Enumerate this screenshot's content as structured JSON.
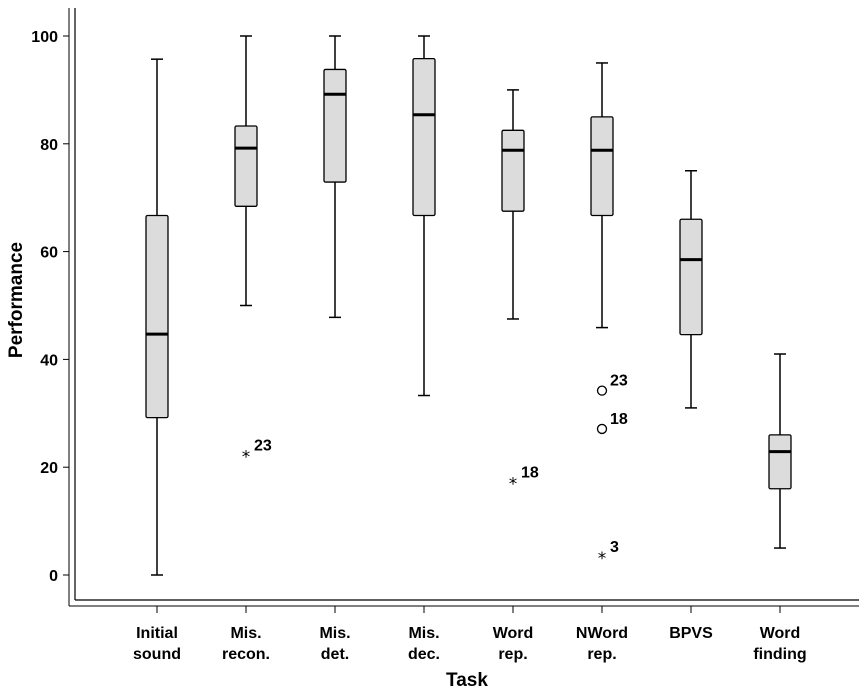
{
  "chart_data": {
    "type": "boxplot",
    "xlabel": "Task",
    "ylabel": "Performance",
    "ylim": [
      -5,
      105
    ],
    "yticks": [
      0,
      20,
      40,
      60,
      80,
      100
    ],
    "grid": false,
    "categories": [
      [
        "Initial",
        "sound"
      ],
      [
        "Mis.",
        "recon."
      ],
      [
        "Mis.",
        "det."
      ],
      [
        "Mis.",
        "dec."
      ],
      [
        "Word",
        "rep."
      ],
      [
        "NWord",
        "rep."
      ],
      [
        "BPVS"
      ],
      [
        "Word",
        "finding"
      ]
    ],
    "boxes": [
      {
        "whisker_low": 0,
        "q1": 29.2,
        "median": 44.7,
        "q3": 66.7,
        "whisker_high": 95.7
      },
      {
        "whisker_low": 50,
        "q1": 68.4,
        "median": 79.2,
        "q3": 83.3,
        "whisker_high": 100
      },
      {
        "whisker_low": 47.8,
        "q1": 72.9,
        "median": 89.2,
        "q3": 93.8,
        "whisker_high": 100
      },
      {
        "whisker_low": 33.3,
        "q1": 66.7,
        "median": 85.4,
        "q3": 95.8,
        "whisker_high": 100
      },
      {
        "whisker_low": 47.5,
        "q1": 67.5,
        "median": 78.8,
        "q3": 82.5,
        "whisker_high": 90
      },
      {
        "whisker_low": 45.9,
        "q1": 66.7,
        "median": 78.8,
        "q3": 85,
        "whisker_high": 95
      },
      {
        "whisker_low": 31,
        "q1": 44.6,
        "median": 58.5,
        "q3": 66,
        "whisker_high": 75
      },
      {
        "whisker_low": 5,
        "q1": 16,
        "median": 22.9,
        "q3": 26,
        "whisker_high": 41
      }
    ],
    "outliers": [
      {
        "category": 1,
        "value": 22.2,
        "marker": "star",
        "label": "23"
      },
      {
        "category": 4,
        "value": 17.2,
        "marker": "star",
        "label": "18"
      },
      {
        "category": 5,
        "value": 34.2,
        "marker": "circle",
        "label": "23"
      },
      {
        "category": 5,
        "value": 27.1,
        "marker": "circle",
        "label": "18"
      },
      {
        "category": 5,
        "value": 3.3,
        "marker": "star",
        "label": "3"
      }
    ],
    "colors": {
      "box_fill": "#dcdcdc",
      "stroke": "#000000"
    }
  }
}
